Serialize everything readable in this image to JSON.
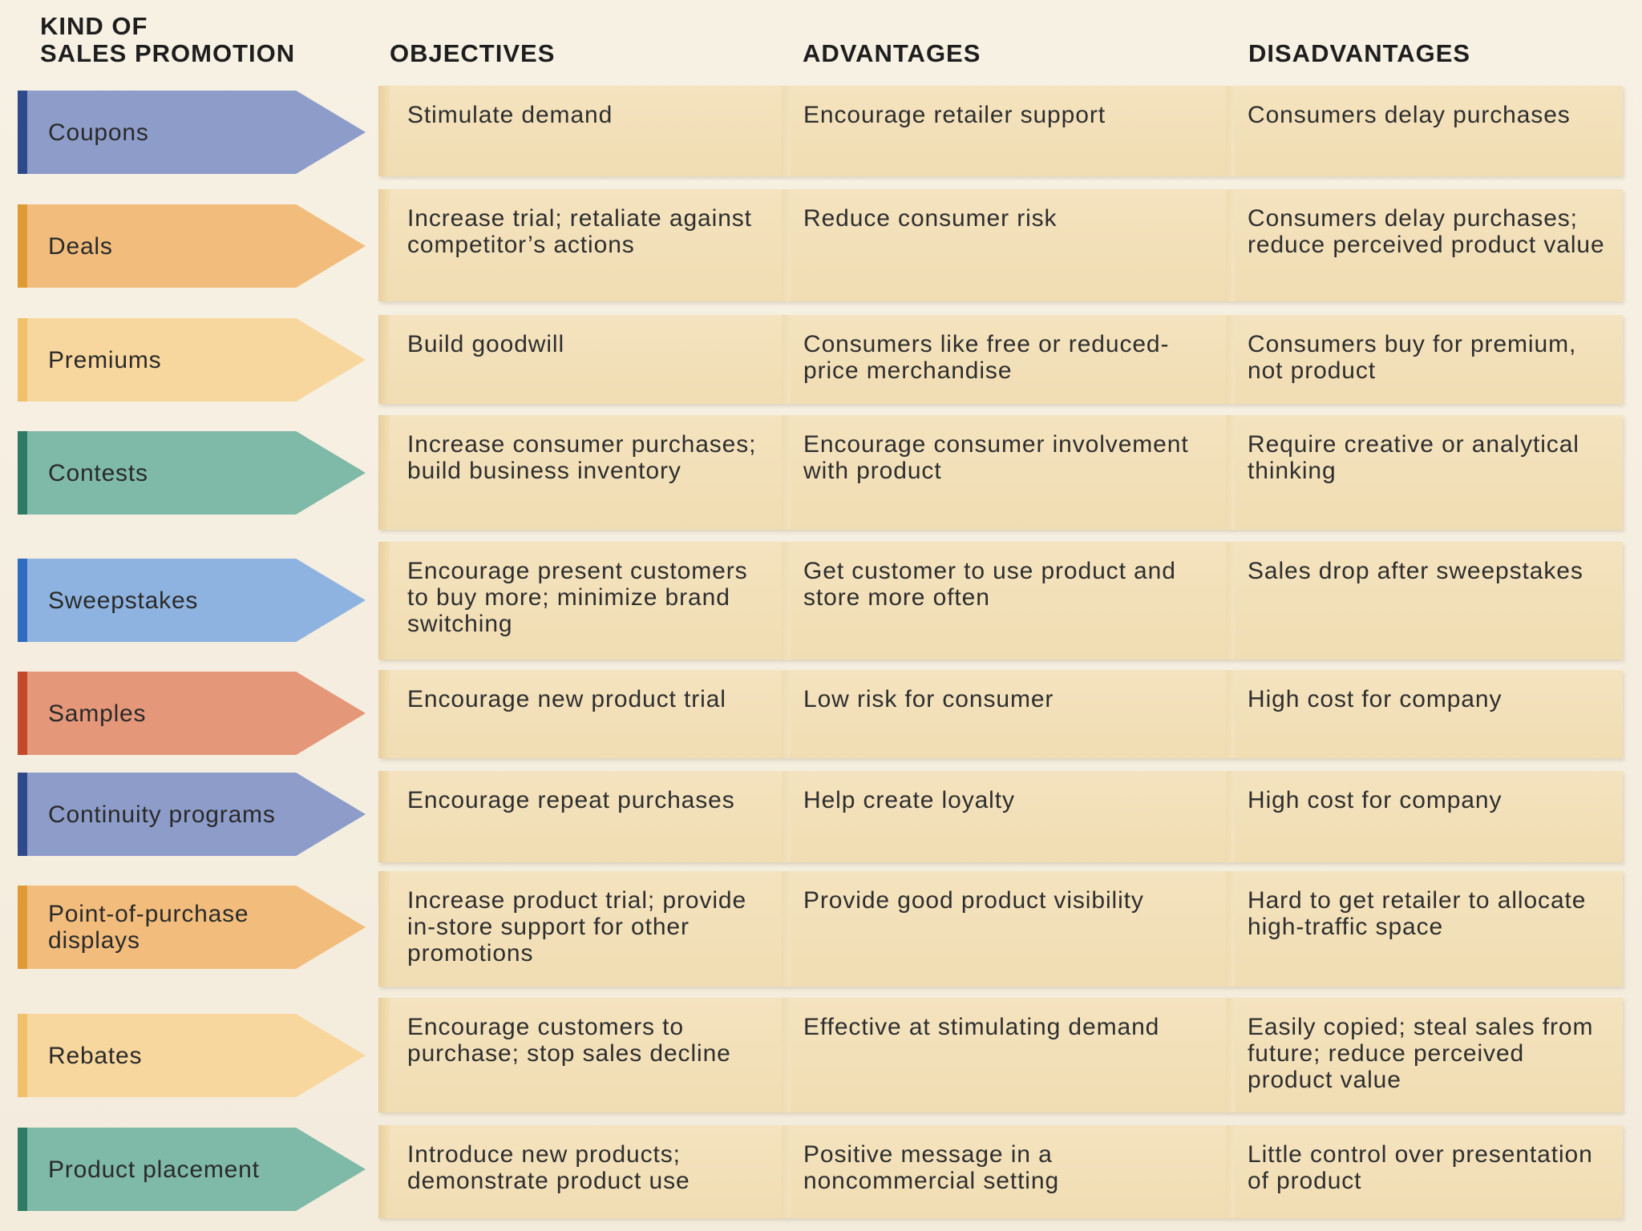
{
  "headers": {
    "kind": "KIND OF\nSALES PROMOTION",
    "objectives": "OBJECTIVES",
    "advantages": "ADVANTAGES",
    "disadvantages": "DISADVANTAGES"
  },
  "rows": [
    {
      "kind": "Coupons",
      "color": "#8d9cc9",
      "edge": "#2f4a8a",
      "objective": "Stimulate demand",
      "advantage": "Encourage retailer support",
      "disadvantage": "Consumers delay purchases"
    },
    {
      "kind": "Deals",
      "color": "#f2bd7c",
      "edge": "#e09a35",
      "objective": "Increase trial; retaliate against competitor’s actions",
      "advantage": "Reduce consumer risk",
      "disadvantage": "Consumers delay purchases; reduce perceived product value"
    },
    {
      "kind": "Premiums",
      "color": "#f8d79e",
      "edge": "#f0c06a",
      "objective": "Build goodwill",
      "advantage": "Consumers like free or reduced-price merchandise",
      "disadvantage": "Consumers buy for premium, not product"
    },
    {
      "kind": "Contests",
      "color": "#7fb9a8",
      "edge": "#2f7a64",
      "objective": "Increase consumer purchases; build business inventory",
      "advantage": "Encourage consumer involvement with product",
      "disadvantage": "Require creative or analytical thinking"
    },
    {
      "kind": "Sweepstakes",
      "color": "#8fb3e0",
      "edge": "#2f6cc0",
      "objective": "Encourage present customers to buy more; minimize brand switching",
      "advantage": "Get customer to use product and store more often",
      "disadvantage": "Sales drop after sweepstakes"
    },
    {
      "kind": "Samples",
      "color": "#e5977a",
      "edge": "#c24a2a",
      "objective": "Encourage new product trial",
      "advantage": "Low risk for consumer",
      "disadvantage": "High cost for company"
    },
    {
      "kind": "Continuity programs",
      "color": "#8d9cc9",
      "edge": "#2f4a8a",
      "objective": "Encourage repeat purchases",
      "advantage": "Help create loyalty",
      "disadvantage": "High cost for company"
    },
    {
      "kind": "Point-of-purchase displays",
      "color": "#f2bd7c",
      "edge": "#e09a35",
      "objective": "Increase product trial; provide in-store support for other promotions",
      "advantage": "Provide good product visibility",
      "disadvantage": "Hard to get retailer to allocate high-traffic space"
    },
    {
      "kind": "Rebates",
      "color": "#f8d79e",
      "edge": "#f0c06a",
      "objective": "Encourage customers to purchase; stop sales decline",
      "advantage": "Effective at stimulating demand",
      "disadvantage": "Easily copied; steal sales from future; reduce perceived product value"
    },
    {
      "kind": "Product placement",
      "color": "#7fb9a8",
      "edge": "#2f7a64",
      "objective": "Introduce new products; demonstrate product use",
      "advantage": "Positive message in a noncommercial setting",
      "disadvantage": "Little control over presentation of product"
    }
  ]
}
